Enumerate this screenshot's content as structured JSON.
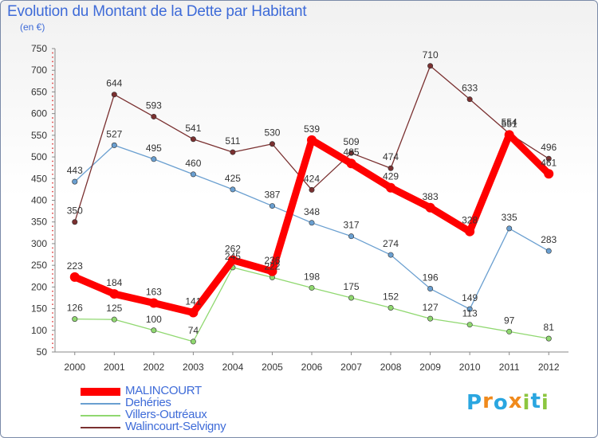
{
  "chart_data": {
    "type": "line",
    "title": "Evolution du Montant de la Dette par Habitant",
    "subtitle": "(en €)",
    "x": [
      2000,
      2001,
      2002,
      2003,
      2004,
      2005,
      2006,
      2007,
      2008,
      2009,
      2010,
      2011,
      2012
    ],
    "ylim": [
      50,
      750
    ],
    "yticks": [
      50,
      100,
      150,
      200,
      250,
      300,
      350,
      400,
      450,
      500,
      550,
      600,
      650,
      700,
      750
    ],
    "grid": false,
    "legend_position": "bottom-left",
    "series": [
      {
        "name": "MALINCOURT",
        "color": "#ff0000",
        "values": [
          223,
          184,
          163,
          141,
          262,
          236,
          539,
          485,
          429,
          383,
          328,
          551,
          461
        ]
      },
      {
        "name": "Dehéries",
        "color": "#6a9fd0",
        "values": [
          443,
          527,
          495,
          460,
          425,
          387,
          348,
          317,
          274,
          196,
          149,
          335,
          283
        ]
      },
      {
        "name": "Villers-Outréaux",
        "color": "#90d870",
        "values": [
          126,
          125,
          100,
          74,
          245,
          222,
          198,
          175,
          152,
          127,
          113,
          97,
          81
        ]
      },
      {
        "name": "Walincourt-Selvigny",
        "color": "#7a3030",
        "values": [
          350,
          644,
          593,
          541,
          511,
          530,
          424,
          509,
          474,
          710,
          633,
          554,
          496
        ]
      }
    ]
  },
  "logo": {
    "letters": [
      "P",
      "r",
      "o",
      "x",
      "i",
      "t",
      "i"
    ],
    "colors": [
      "#2aa6e0",
      "#f08a1c",
      "#2aa6e0",
      "#f08a1c",
      "#8cc63f",
      "#2aa6e0",
      "#8cc63f"
    ]
  }
}
